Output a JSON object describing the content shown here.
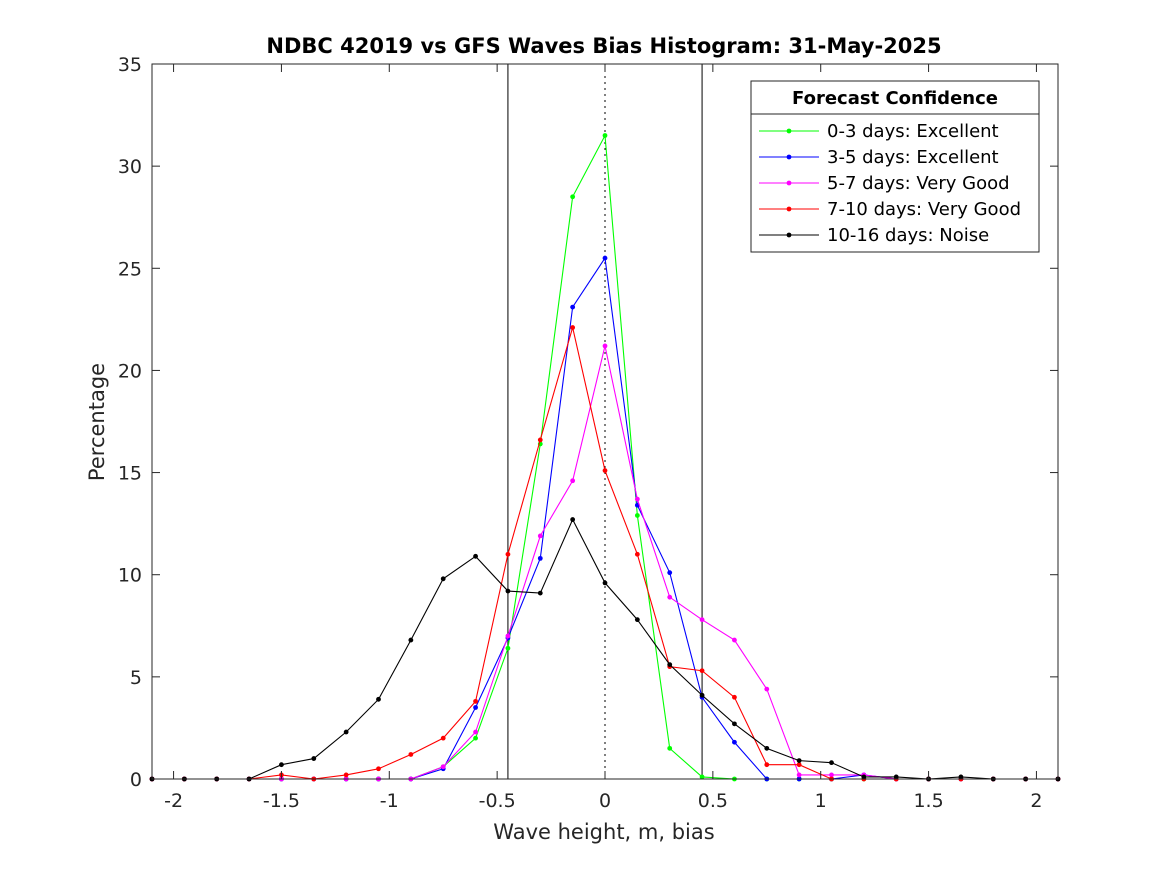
{
  "chart_data": {
    "type": "line",
    "title": "NDBC 42019 vs GFS Waves Bias Histogram: 31-May-2025",
    "xlabel": "Wave height, m, bias",
    "ylabel": "Percentage",
    "xlim": [
      -2.1,
      2.1
    ],
    "ylim": [
      0,
      35
    ],
    "xticks": [
      -2,
      -1.5,
      -1,
      -0.5,
      0,
      0.5,
      1,
      1.5,
      2
    ],
    "xtick_labels": [
      "-2",
      "-1.5",
      "-1",
      "-0.5",
      "0",
      "0.5",
      "1",
      "1.5",
      "2"
    ],
    "yticks": [
      0,
      5,
      10,
      15,
      20,
      25,
      30,
      35
    ],
    "ytick_labels": [
      "0",
      "5",
      "10",
      "15",
      "20",
      "25",
      "30",
      "35"
    ],
    "grid": false,
    "legend_title": "Forecast Confidence",
    "legend_position": "top-right",
    "reference_lines": [
      {
        "x": -0.45,
        "style": "solid",
        "color": "#000000"
      },
      {
        "x": 0,
        "style": "dotted",
        "color": "#000000"
      },
      {
        "x": 0.45,
        "style": "solid",
        "color": "#000000"
      }
    ],
    "x": [
      -2.1,
      -1.95,
      -1.8,
      -1.65,
      -1.5,
      -1.35,
      -1.2,
      -1.05,
      -0.9,
      -0.75,
      -0.6,
      -0.45,
      -0.3,
      -0.15,
      0,
      0.15,
      0.3,
      0.45,
      0.6,
      0.75,
      0.9,
      1.05,
      1.2,
      1.35,
      1.5,
      1.65,
      1.8,
      1.95,
      2.1
    ],
    "series": [
      {
        "name": "0-3 days: Excellent",
        "color": "#00ff00",
        "values": [
          0,
          0,
          0,
          0,
          0,
          0,
          0,
          0,
          0,
          0.6,
          2.0,
          6.4,
          16.4,
          28.5,
          31.5,
          12.9,
          1.5,
          0.1,
          0,
          0,
          0,
          0,
          0,
          0,
          0,
          0,
          0,
          0,
          0
        ]
      },
      {
        "name": "3-5 days: Excellent",
        "color": "#0000ff",
        "values": [
          0,
          0,
          0,
          0,
          0,
          0,
          0,
          0,
          0,
          0.5,
          3.5,
          6.9,
          10.8,
          23.1,
          25.5,
          13.4,
          10.1,
          4.0,
          1.8,
          0,
          0,
          0,
          0.2,
          0,
          0,
          0,
          0,
          0,
          0
        ]
      },
      {
        "name": "5-7 days: Very Good",
        "color": "#ff00ff",
        "values": [
          0,
          0,
          0,
          0,
          0,
          0,
          0,
          0,
          0,
          0.6,
          2.3,
          7.0,
          11.9,
          14.6,
          21.2,
          13.7,
          8.9,
          7.8,
          6.8,
          4.4,
          0.2,
          0.2,
          0.2,
          0,
          0,
          0,
          0,
          0,
          0
        ]
      },
      {
        "name": "7-10 days: Very Good",
        "color": "#ff0000",
        "values": [
          0,
          0,
          0,
          0,
          0.2,
          0,
          0.2,
          0.5,
          1.2,
          2.0,
          3.8,
          11.0,
          16.6,
          22.1,
          15.1,
          11.0,
          5.5,
          5.3,
          4.0,
          0.7,
          0.7,
          0,
          0,
          0,
          0,
          0,
          0,
          0,
          0
        ]
      },
      {
        "name": "10-16 days: Noise",
        "color": "#000000",
        "values": [
          0,
          0,
          0,
          0,
          0.7,
          1.0,
          2.3,
          3.9,
          6.8,
          9.8,
          10.9,
          9.2,
          9.1,
          12.7,
          9.6,
          7.8,
          5.6,
          4.1,
          2.7,
          1.5,
          0.9,
          0.8,
          0.1,
          0.1,
          0,
          0.1,
          0,
          0,
          0
        ]
      }
    ]
  }
}
